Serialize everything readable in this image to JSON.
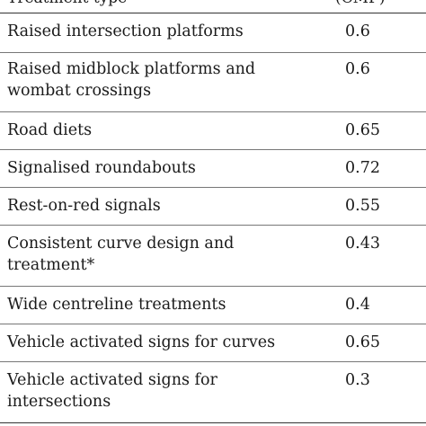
{
  "table": {
    "header": {
      "col1": "Treatment type",
      "col2": "(CMF)"
    },
    "rows": [
      {
        "treatment": "Raised intersection platforms",
        "cmf": "0.6"
      },
      {
        "treatment": "Raised midblock platforms and wombat crossings",
        "cmf": "0.6"
      },
      {
        "treatment": "Road diets",
        "cmf": "0.65"
      },
      {
        "treatment": "Signalised roundabouts",
        "cmf": "0.72"
      },
      {
        "treatment": "Rest-on-red signals",
        "cmf": "0.55"
      },
      {
        "treatment": "Consistent curve design and treatment*",
        "cmf": "0.43"
      },
      {
        "treatment": "Wide centreline treatments",
        "cmf": "0.4"
      },
      {
        "treatment": "Vehicle activated signs for curves",
        "cmf": "0.65"
      },
      {
        "treatment": "Vehicle activated signs for intersections",
        "cmf": "0.3"
      }
    ]
  }
}
